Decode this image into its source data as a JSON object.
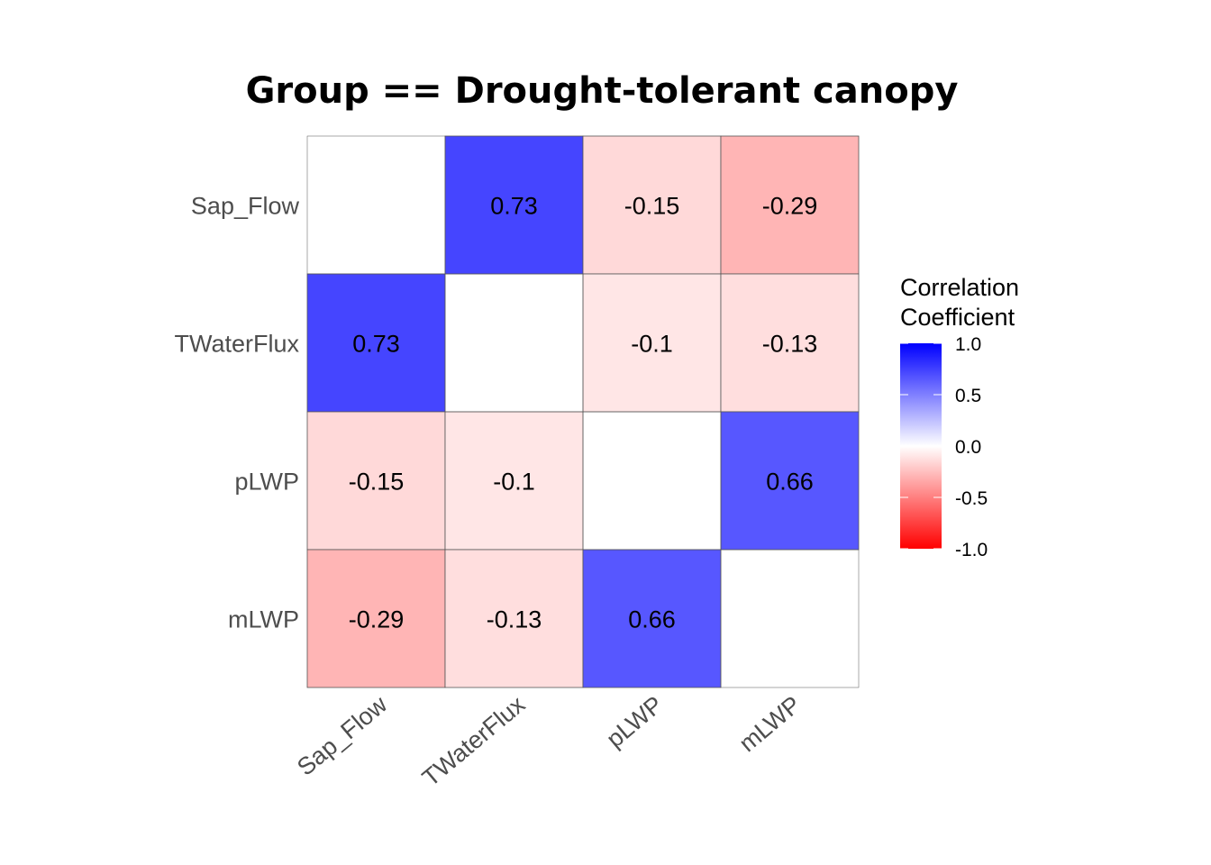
{
  "chart_data": {
    "type": "heatmap",
    "title": "Group == Drought-tolerant canopy",
    "variables": [
      "Sap_Flow",
      "TWaterFlux",
      "pLWP",
      "mLWP"
    ],
    "matrix": [
      [
        null,
        0.73,
        -0.15,
        -0.29
      ],
      [
        0.73,
        null,
        -0.1,
        -0.13
      ],
      [
        -0.15,
        -0.1,
        null,
        0.66
      ],
      [
        -0.29,
        -0.13,
        0.66,
        null
      ]
    ],
    "legend": {
      "title_lines": [
        "Correlation",
        "Coefficient"
      ],
      "ticks": [
        {
          "value": 1.0,
          "label": "1.0"
        },
        {
          "value": 0.5,
          "label": "0.5"
        },
        {
          "value": 0.0,
          "label": "0.0"
        },
        {
          "value": -0.5,
          "label": "-0.5"
        },
        {
          "value": -1.0,
          "label": "-1.0"
        }
      ],
      "range": [
        -1,
        1
      ],
      "placement": "right"
    },
    "colors": {
      "low": "#FF0000",
      "mid": "#FFFFFF",
      "high": "#0000FF"
    }
  }
}
